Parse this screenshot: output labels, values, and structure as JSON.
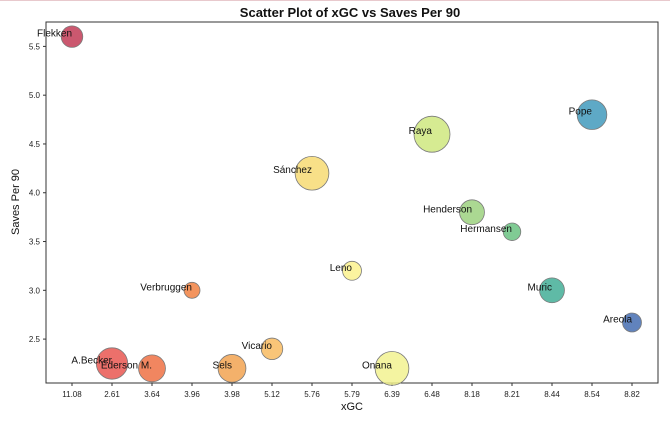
{
  "chart_data": {
    "type": "scatter",
    "title": "Scatter Plot of xGC vs Saves Per 90",
    "xlabel": "xGC",
    "ylabel": "Saves Per 90",
    "x_is_categorical": true,
    "categories": [
      "11.08",
      "2.61",
      "3.64",
      "3.96",
      "3.98",
      "5.12",
      "5.76",
      "5.79",
      "6.39",
      "6.48",
      "8.18",
      "8.21",
      "8.44",
      "8.54",
      "8.82"
    ],
    "ylim": [
      2.05,
      5.75
    ],
    "yticks": [
      2.5,
      3.0,
      3.5,
      4.0,
      4.5,
      5.0,
      5.5
    ],
    "grid": false,
    "size_encoding": "relative bubble size",
    "points": [
      {
        "name": "Flekken",
        "x": "11.08",
        "y": 5.6,
        "size": 0.35,
        "color": "#c0334f"
      },
      {
        "name": "A.Becker",
        "x": "2.61",
        "y": 2.25,
        "size": 0.85,
        "color": "#e8504a"
      },
      {
        "name": "Ederson M.",
        "x": "3.64",
        "y": 2.2,
        "size": 0.6,
        "color": "#ee6b3d"
      },
      {
        "name": "Verbruggen",
        "x": "3.96",
        "y": 3.0,
        "size": 0.15,
        "color": "#f07c3a"
      },
      {
        "name": "Sels",
        "x": "3.98",
        "y": 2.2,
        "size": 0.65,
        "color": "#f2a04a"
      },
      {
        "name": "Vicario",
        "x": "5.12",
        "y": 2.4,
        "size": 0.35,
        "color": "#f8b85a"
      },
      {
        "name": "Sánchez",
        "x": "5.76",
        "y": 4.2,
        "size": 1.0,
        "color": "#f7d96e"
      },
      {
        "name": "Leno",
        "x": "5.79",
        "y": 3.2,
        "size": 0.25,
        "color": "#fbf28a"
      },
      {
        "name": "Onana",
        "x": "6.39",
        "y": 2.2,
        "size": 1.0,
        "color": "#f2f28c"
      },
      {
        "name": "Raya",
        "x": "6.48",
        "y": 4.6,
        "size": 1.15,
        "color": "#cde67a"
      },
      {
        "name": "Henderson",
        "x": "8.18",
        "y": 3.8,
        "size": 0.5,
        "color": "#98d07a"
      },
      {
        "name": "Hermansen",
        "x": "8.21",
        "y": 3.6,
        "size": 0.2,
        "color": "#64c07c"
      },
      {
        "name": "Muric",
        "x": "8.44",
        "y": 3.0,
        "size": 0.5,
        "color": "#3cab92"
      },
      {
        "name": "Pope",
        "x": "8.54",
        "y": 4.8,
        "size": 0.75,
        "color": "#3a96ba"
      },
      {
        "name": "Areola",
        "x": "8.82",
        "y": 2.67,
        "size": 0.25,
        "color": "#3e68ae"
      }
    ]
  }
}
